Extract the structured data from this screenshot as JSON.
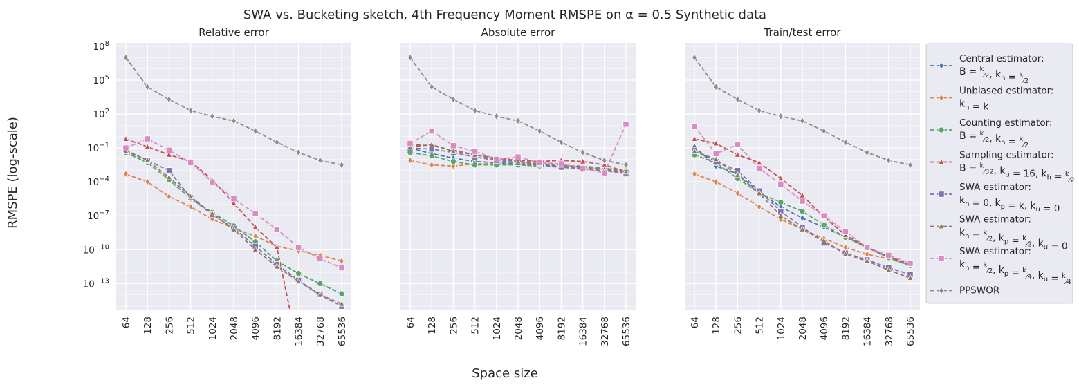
{
  "figure": {
    "suptitle": "SWA vs. Bucketing sketch, 4th Frequency Moment RMSPE on α = 0.5 Synthetic data",
    "xlabel": "Space size",
    "ylabel": "RMSPE (log-scale)"
  },
  "legend": [
    {
      "name": "Central estimator:",
      "params": "B = k/2, k_h = k/2",
      "color": "#4c72b0",
      "marker": "diamond",
      "dash": "6,3"
    },
    {
      "name": "Unbiased estimator:",
      "params": "k_h = k",
      "color": "#dd8452",
      "marker": "diamond",
      "dash": "6,3"
    },
    {
      "name": "Counting estimator:",
      "params": "B = k/2, k_h = k/2",
      "color": "#55a868",
      "marker": "circle",
      "dash": "6,3"
    },
    {
      "name": "Sampling estimator:",
      "params": "B = k/32, k_u = 16, k_h = k/2",
      "color": "#c44e52",
      "marker": "triangle",
      "dash": "6,3"
    },
    {
      "name": "SWA estimator:",
      "params": "k_h = 0, k_p = k, k_u = 0",
      "color": "#8172b3",
      "marker": "square",
      "dash": "6,3"
    },
    {
      "name": "SWA estimator:",
      "params": "k_h = k/2, k_p = k/2, k_u = 0",
      "color": "#937860",
      "marker": "triangle",
      "dash": "6,3"
    },
    {
      "name": "SWA estimator:",
      "params": "k_h = k/2, k_p = k/4, k_u = k/4",
      "color": "#da8bc3",
      "marker": "square",
      "dash": "6,3"
    },
    {
      "name": "PPSWOR",
      "params": "",
      "color": "#8c8c8c",
      "marker": "diamond",
      "dash": "6,3"
    }
  ],
  "chart_data": [
    {
      "type": "line",
      "title": "Relative error",
      "y_scale": "log",
      "y_ticks": [
        "10^8",
        "10^5",
        "10^2",
        "10^-1",
        "10^-4",
        "10^-7",
        "10^-10",
        "10^-13"
      ],
      "ylim_log10": [
        -15.3,
        8.3
      ],
      "categories": [
        "64",
        "128",
        "256",
        "512",
        "1024",
        "2048",
        "4096",
        "8192",
        "16384",
        "32768",
        "65536"
      ],
      "grid": true,
      "series": [
        {
          "name": "Central estimator",
          "log10_values": [
            -1.4,
            -2.3,
            -3.8,
            -5.5,
            -6.7,
            -7.9,
            -9.3,
            -11.0,
            -12.1,
            -13.0,
            -13.9
          ]
        },
        {
          "name": "Unbiased estimator",
          "log10_values": [
            -3.3,
            -4.0,
            -5.3,
            -6.2,
            -7.3,
            -8.1,
            -8.8,
            -9.7,
            -10.1,
            -10.5,
            -11.0
          ]
        },
        {
          "name": "Counting estimator",
          "log10_values": [
            -1.4,
            -2.3,
            -3.8,
            -5.5,
            -6.7,
            -7.9,
            -9.3,
            -11.0,
            -12.1,
            -13.0,
            -13.9
          ]
        },
        {
          "name": "Sampling estimator",
          "log10_values": [
            -0.2,
            -0.9,
            -1.6,
            -2.2,
            -3.8,
            -5.9,
            -8.0,
            -9.8,
            -19.0
          ]
        },
        {
          "name": "SWA estimator (k_h=0)",
          "log10_values": [
            -1.2,
            -2.1,
            -3.0,
            -5.4,
            -6.9,
            -8.1,
            -9.7,
            -11.3,
            -12.7,
            -14.0,
            -15.0
          ]
        },
        {
          "name": "SWA estimator (k_p=k/2)",
          "log10_values": [
            -1.3,
            -2.1,
            -3.6,
            -5.3,
            -6.8,
            -8.2,
            -10.0,
            -11.5,
            -12.8,
            -14.0,
            -14.8
          ]
        },
        {
          "name": "SWA estimator (k_u=k/4)",
          "log10_values": [
            -1.0,
            -0.2,
            -1.2,
            -2.3,
            -4.0,
            -5.5,
            -6.8,
            -8.2,
            -9.8,
            -10.8,
            -11.6
          ]
        },
        {
          "name": "PPSWOR",
          "log10_values": [
            7.0,
            4.4,
            3.3,
            2.3,
            1.8,
            1.4,
            0.5,
            -0.5,
            -1.4,
            -2.1,
            -2.5
          ]
        }
      ]
    },
    {
      "type": "line",
      "title": "Absolute error",
      "y_scale": "log",
      "ylim_log10": [
        -15.3,
        8.3
      ],
      "categories": [
        "64",
        "128",
        "256",
        "512",
        "1024",
        "2048",
        "4096",
        "8192",
        "16384",
        "32768",
        "65536"
      ],
      "grid": true,
      "series": [
        {
          "name": "Central estimator",
          "log10_values": [
            -1.0,
            -1.5,
            -1.9,
            -2.2,
            -2.3,
            -2.4,
            -2.5,
            -2.6,
            -2.6,
            -2.8,
            -3.0
          ]
        },
        {
          "name": "Unbiased estimator",
          "log10_values": [
            -2.1,
            -2.5,
            -2.6,
            -2.4,
            -2.4,
            -2.5,
            -2.6,
            -2.7,
            -2.9,
            -3.0,
            -3.3
          ]
        },
        {
          "name": "Counting estimator",
          "log10_values": [
            -1.4,
            -1.7,
            -2.2,
            -2.5,
            -2.5,
            -2.5,
            -2.6,
            -2.6,
            -2.7,
            -2.8,
            -3.0
          ]
        },
        {
          "name": "Sampling estimator",
          "log10_values": [
            -0.7,
            -0.8,
            -1.2,
            -1.6,
            -1.9,
            -2.1,
            -2.2,
            -2.1,
            -2.2,
            -2.5,
            -3.1
          ]
        },
        {
          "name": "SWA estimator (k_h=0)",
          "log10_values": [
            -1.0,
            -1.1,
            -1.4,
            -1.8,
            -2.1,
            -2.3,
            -2.5,
            -2.7,
            -2.8,
            -3.0,
            -3.2
          ]
        },
        {
          "name": "SWA estimator (k_p=k/2)",
          "log10_values": [
            -0.9,
            -0.7,
            -1.3,
            -1.6,
            -2.0,
            -2.2,
            -2.4,
            -2.5,
            -2.7,
            -2.9,
            -3.1
          ]
        },
        {
          "name": "SWA estimator (k_u=k/4)",
          "log10_values": [
            -0.6,
            0.5,
            -0.8,
            -1.3,
            -2.0,
            -1.8,
            -2.3,
            -2.4,
            -2.8,
            -3.2,
            1.1
          ]
        },
        {
          "name": "PPSWOR",
          "log10_values": [
            7.0,
            4.4,
            3.3,
            2.3,
            1.8,
            1.4,
            0.5,
            -0.5,
            -1.4,
            -2.1,
            -2.5
          ]
        }
      ]
    },
    {
      "type": "line",
      "title": "Train/test error",
      "y_scale": "log",
      "ylim_log10": [
        -15.3,
        8.3
      ],
      "categories": [
        "64",
        "128",
        "256",
        "512",
        "1024",
        "2048",
        "4096",
        "8192",
        "16384",
        "32768",
        "65536"
      ],
      "grid": true,
      "series": [
        {
          "name": "Central estimator",
          "log10_values": [
            -0.9,
            -2.6,
            -3.3,
            -4.9,
            -6.2,
            -7.2,
            -8.0,
            -8.9,
            -9.8,
            -10.7,
            -11.4
          ]
        },
        {
          "name": "Unbiased estimator",
          "log10_values": [
            -3.3,
            -4.0,
            -5.0,
            -6.2,
            -7.3,
            -8.2,
            -9.0,
            -9.8,
            -10.4,
            -10.8,
            -11.4
          ]
        },
        {
          "name": "Counting estimator",
          "log10_values": [
            -1.6,
            -2.3,
            -3.7,
            -5.0,
            -5.8,
            -6.6,
            -7.8,
            -8.9,
            -9.8,
            -10.7,
            -11.4
          ]
        },
        {
          "name": "Sampling estimator",
          "log10_values": [
            -0.2,
            -0.6,
            -1.6,
            -2.3,
            -3.7,
            -5.2,
            -7.1,
            -8.7,
            -9.8,
            -10.6,
            -11.3
          ]
        },
        {
          "name": "SWA estimator (k_h=0)",
          "log10_values": [
            -1.2,
            -2.2,
            -3.0,
            -4.8,
            -6.6,
            -8.0,
            -9.4,
            -10.3,
            -10.9,
            -11.6,
            -12.2
          ]
        },
        {
          "name": "SWA estimator (k_p=k/2)",
          "log10_values": [
            -1.3,
            -2.0,
            -3.4,
            -5.0,
            -7.0,
            -8.2,
            -9.2,
            -10.4,
            -11.0,
            -11.8,
            -12.5
          ]
        },
        {
          "name": "SWA estimator (k_u=k/4)",
          "log10_values": [
            0.9,
            -1.5,
            -0.7,
            -2.8,
            -4.2,
            -5.7,
            -7.0,
            -8.4,
            -9.8,
            -10.5,
            -11.2
          ]
        },
        {
          "name": "PPSWOR",
          "log10_values": [
            7.0,
            4.4,
            3.3,
            2.3,
            1.8,
            1.4,
            0.5,
            -0.5,
            -1.4,
            -2.1,
            -2.5
          ]
        }
      ]
    }
  ]
}
